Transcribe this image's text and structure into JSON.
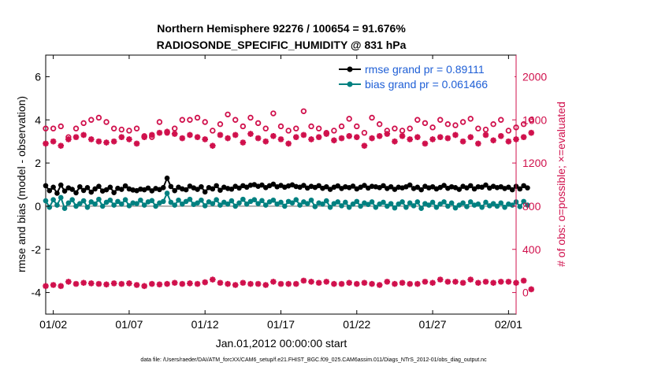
{
  "chart_data": {
    "type": "line",
    "title_line1": "Northern Hemisphere 92276 / 100654 = 91.676%",
    "title_line2": "RADIOSONDE_SPECIFIC_HUMIDITY @ 831 hPa",
    "xlabel": "Jan.01,2012 00:00:00 start",
    "ylabel_left": "rmse and bias (model - observation)",
    "ylabel_right": "# of obs: o=possible; ×=evaluated",
    "xlim": [
      0.5,
      31.5
    ],
    "ylim_left": [
      -5,
      7
    ],
    "ylim_right": [
      -200,
      2200
    ],
    "x_ticks": [
      {
        "value": 1,
        "label": "01/02"
      },
      {
        "value": 6,
        "label": "01/07"
      },
      {
        "value": 11,
        "label": "01/12"
      },
      {
        "value": 16,
        "label": "01/17"
      },
      {
        "value": 21,
        "label": "01/22"
      },
      {
        "value": 26,
        "label": "01/27"
      },
      {
        "value": 31,
        "label": "02/01"
      }
    ],
    "y_ticks_left": [
      -4,
      -2,
      0,
      2,
      4,
      6
    ],
    "y_ticks_right": [
      0,
      400,
      800,
      1200,
      1600,
      2000
    ],
    "legend": [
      {
        "label": "rmse grand pr = 0.89111",
        "color": "#000000"
      },
      {
        "label": "bias grand pr = 0.061466",
        "color": "#008080"
      }
    ],
    "series": [
      {
        "name": "rmse",
        "axis": "left",
        "color": "#000000",
        "marker": "dot",
        "x0": 0.5,
        "dx": 0.25,
        "values": [
          0.95,
          0.72,
          0.88,
          0.6,
          0.98,
          0.7,
          0.85,
          0.78,
          0.62,
          0.9,
          0.73,
          0.86,
          0.65,
          0.8,
          0.92,
          0.7,
          0.76,
          0.88,
          0.63,
          0.83,
          0.78,
          0.94,
          0.8,
          0.75,
          0.72,
          0.79,
          0.76,
          0.84,
          0.71,
          0.82,
          0.77,
          0.86,
          1.3,
          0.91,
          0.72,
          0.88,
          0.8,
          0.76,
          0.93,
          0.85,
          0.78,
          0.9,
          0.66,
          0.86,
          0.8,
          0.95,
          0.74,
          0.88,
          0.82,
          0.79,
          0.92,
          0.84,
          0.95,
          0.88,
          0.97,
          1.0,
          0.92,
          0.98,
          0.86,
          0.95,
          1.02,
          0.9,
          0.96,
          0.88,
          0.94,
          0.99,
          0.91,
          0.88,
          0.96,
          0.84,
          0.92,
          0.87,
          0.95,
          0.83,
          0.9,
          0.78,
          0.88,
          0.94,
          0.82,
          0.9,
          0.86,
          0.93,
          0.8,
          0.88,
          0.96,
          0.84,
          0.92,
          0.9,
          0.86,
          0.95,
          0.82,
          0.9,
          0.78,
          0.88,
          0.85,
          0.9,
          0.98,
          0.82,
          0.88,
          0.76,
          0.92,
          0.85,
          0.9,
          0.8,
          0.87,
          0.96,
          0.83,
          0.9,
          0.86,
          0.78,
          0.92,
          0.85,
          0.95,
          0.8,
          0.9,
          0.88,
          0.98,
          0.84,
          0.92,
          0.86,
          0.9,
          0.82,
          0.88,
          0.76,
          0.92,
          0.8,
          0.95,
          0.85
        ]
      },
      {
        "name": "bias",
        "axis": "left",
        "color": "#008080",
        "marker": "dot",
        "x0": 0.5,
        "dx": 0.25,
        "values": [
          0.25,
          -0.05,
          0.3,
          0.05,
          0.4,
          -0.1,
          0.15,
          0.3,
          0.0,
          0.12,
          0.25,
          -0.05,
          0.2,
          0.1,
          0.32,
          0.0,
          0.18,
          0.28,
          0.05,
          0.22,
          0.1,
          0.3,
          0.02,
          0.15,
          0.12,
          0.28,
          0.05,
          0.2,
          0.26,
          0.0,
          0.15,
          0.22,
          0.6,
          0.18,
          0.05,
          0.28,
          0.1,
          0.22,
          0.32,
          0.08,
          0.15,
          0.28,
          0.02,
          0.2,
          0.12,
          0.3,
          0.05,
          0.18,
          0.1,
          0.25,
          0.0,
          0.15,
          0.32,
          0.1,
          0.22,
          0.3,
          0.12,
          0.26,
          0.05,
          0.2,
          0.28,
          0.1,
          0.18,
          0.0,
          0.22,
          0.15,
          0.3,
          0.05,
          0.2,
          0.12,
          0.28,
          -0.02,
          0.15,
          0.1,
          0.25,
          -0.05,
          0.12,
          0.2,
          0.02,
          0.18,
          -0.05,
          0.1,
          0.22,
          0.0,
          0.15,
          0.08,
          0.2,
          -0.05,
          0.1,
          0.18,
          0.0,
          0.12,
          -0.08,
          0.1,
          0.2,
          -0.05,
          0.15,
          0.02,
          0.2,
          -0.1,
          0.12,
          0.05,
          0.18,
          -0.05,
          0.1,
          0.2,
          0.0,
          0.15,
          -0.08,
          0.05,
          0.15,
          -0.02,
          0.2,
          0.05,
          0.1,
          -0.05,
          0.18,
          0.02,
          0.12,
          0.0,
          0.15,
          -0.05,
          0.1,
          0.05,
          0.2,
          -0.02,
          0.22,
          0.05
        ]
      },
      {
        "name": "# obs possible",
        "axis": "right",
        "color": "#d0104c",
        "marker": "circle",
        "x0": 0.5,
        "dx": 0.5,
        "values": [
          1520,
          1520,
          1540,
          1440,
          1520,
          1570,
          1600,
          1620,
          1580,
          1520,
          1510,
          1500,
          1520,
          1450,
          1440,
          1580,
          1480,
          1520,
          1600,
          1600,
          1620,
          1580,
          1500,
          1560,
          1650,
          1600,
          1540,
          1620,
          1570,
          1520,
          1660,
          1540,
          1500,
          1520,
          1680,
          1540,
          1520,
          1480,
          1500,
          1540,
          1610,
          1540,
          1480,
          1620,
          1560,
          1500,
          1520,
          1500,
          1520,
          1600,
          1570,
          1530,
          1600,
          1560,
          1550,
          1580,
          1610,
          1520,
          1510,
          1560,
          1600,
          1500,
          1530,
          1560,
          1600
        ]
      },
      {
        "name": "# obs evaluated",
        "axis": "right",
        "color": "#d0104c",
        "marker": "star",
        "x0": 0.5,
        "dx": 0.5,
        "values": [
          1380,
          1400,
          1360,
          1420,
          1440,
          1460,
          1420,
          1400,
          1390,
          1400,
          1440,
          1420,
          1380,
          1440,
          1460,
          1480,
          1490,
          1470,
          1430,
          1460,
          1440,
          1420,
          1360,
          1460,
          1430,
          1460,
          1390,
          1470,
          1430,
          1400,
          1450,
          1420,
          1380,
          1440,
          1460,
          1420,
          1440,
          1470,
          1410,
          1430,
          1450,
          1440,
          1360,
          1430,
          1450,
          1470,
          1400,
          1450,
          1420,
          1440,
          1380,
          1420,
          1440,
          1430,
          1460,
          1400,
          1440,
          1380,
          1460,
          1410,
          1450,
          1400,
          1420,
          1440,
          1480
        ]
      },
      {
        "name": "# obs rejected",
        "axis": "right",
        "color": "#d0104c",
        "marker": "star",
        "x0": 0.5,
        "dx": 0.5,
        "values": [
          60,
          70,
          60,
          100,
          80,
          90,
          85,
          80,
          75,
          85,
          80,
          85,
          70,
          60,
          80,
          75,
          80,
          90,
          80,
          85,
          80,
          95,
          120,
          90,
          80,
          70,
          90,
          80,
          80,
          70,
          100,
          80,
          80,
          80,
          110,
          100,
          90,
          100,
          80,
          80,
          90,
          80,
          90,
          80,
          70,
          100,
          80,
          90,
          80,
          80,
          100,
          90,
          120,
          100,
          100,
          90,
          120,
          90,
          100,
          90,
          100,
          100,
          90,
          110,
          30
        ]
      }
    ],
    "footnote": "data file: /Users/raeder/DAI/ATM_forcXX/CAM6_setup/f.e21.FHIST_BGC.f09_025.CAM6assim.011/Diags_NTrS_2012-01/obs_diag_output.nc"
  }
}
